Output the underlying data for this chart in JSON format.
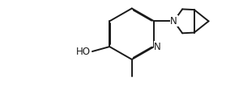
{
  "bg_color": "#ffffff",
  "line_color": "#1a1a1a",
  "lw": 1.4,
  "dbl_off": 0.03,
  "fs": 8.5,
  "figsize": [
    3.0,
    1.12
  ],
  "dpi": 100,
  "xlim": [
    0.0,
    10.0
  ],
  "ylim": [
    0.0,
    3.73
  ]
}
